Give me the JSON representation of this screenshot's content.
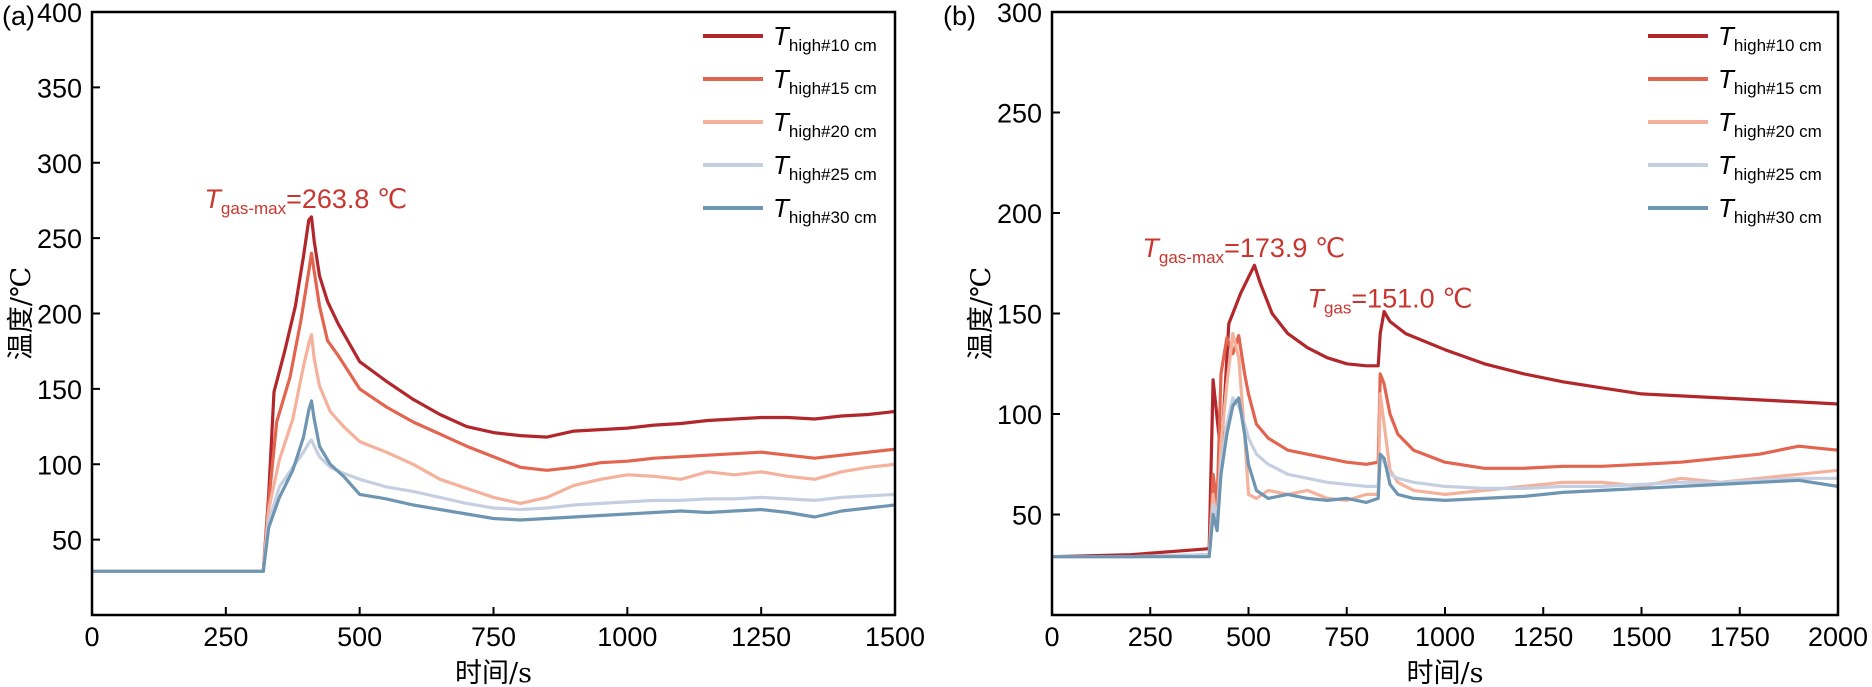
{
  "palette": [
    "#b2272b",
    "#e3644f",
    "#f4b19b",
    "#c6cfe2",
    "#6e96b2"
  ],
  "chart_data": [
    {
      "panel": "(a)",
      "type": "line",
      "xlabel": "时间/s",
      "ylabel": "温度/℃",
      "xlim": [
        0,
        1500
      ],
      "ylim": [
        0,
        400
      ],
      "xticks": [
        0,
        250,
        500,
        750,
        1000,
        1250,
        1500
      ],
      "yticks": [
        50,
        100,
        150,
        200,
        250,
        300,
        350,
        400
      ],
      "legend_position": "top-right",
      "series": [
        {
          "symbol": "T",
          "subscript": "high#10 cm",
          "color": "#b2272b",
          "x": [
            0,
            320,
            330,
            340,
            360,
            380,
            395,
            405,
            410,
            415,
            425,
            440,
            460,
            500,
            550,
            600,
            650,
            700,
            750,
            800,
            850,
            900,
            950,
            1000,
            1050,
            1100,
            1150,
            1200,
            1250,
            1300,
            1350,
            1400,
            1450,
            1500
          ],
          "y": [
            29,
            29,
            80,
            148,
            175,
            205,
            238,
            262,
            264,
            248,
            225,
            208,
            193,
            168,
            155,
            143,
            133,
            125,
            121,
            119,
            118,
            122,
            123,
            124,
            126,
            127,
            129,
            130,
            131,
            131,
            130,
            132,
            133,
            135
          ]
        },
        {
          "symbol": "T",
          "subscript": "high#15 cm",
          "color": "#e3644f",
          "x": [
            0,
            320,
            330,
            345,
            370,
            390,
            405,
            410,
            415,
            425,
            440,
            460,
            500,
            550,
            600,
            650,
            700,
            750,
            800,
            850,
            900,
            950,
            1000,
            1050,
            1100,
            1150,
            1200,
            1250,
            1300,
            1350,
            1400,
            1450,
            1500
          ],
          "y": [
            29,
            29,
            75,
            128,
            158,
            195,
            228,
            240,
            228,
            205,
            182,
            172,
            150,
            138,
            128,
            120,
            112,
            105,
            98,
            96,
            98,
            101,
            102,
            104,
            105,
            106,
            107,
            108,
            106,
            104,
            106,
            108,
            110
          ]
        },
        {
          "symbol": "T",
          "subscript": "high#20 cm",
          "color": "#f4b19b",
          "x": [
            0,
            320,
            330,
            350,
            375,
            395,
            405,
            410,
            415,
            425,
            445,
            470,
            500,
            550,
            600,
            650,
            700,
            750,
            800,
            850,
            900,
            950,
            1000,
            1050,
            1100,
            1150,
            1200,
            1250,
            1300,
            1350,
            1400,
            1450,
            1500
          ],
          "y": [
            29,
            29,
            70,
            103,
            130,
            165,
            180,
            186,
            170,
            152,
            135,
            125,
            115,
            108,
            100,
            90,
            84,
            78,
            74,
            78,
            86,
            90,
            93,
            92,
            90,
            95,
            93,
            95,
            92,
            90,
            95,
            98,
            100
          ]
        },
        {
          "symbol": "T",
          "subscript": "high#25 cm",
          "color": "#c6cfe2",
          "x": [
            0,
            320,
            330,
            350,
            375,
            395,
            405,
            410,
            415,
            425,
            445,
            470,
            500,
            550,
            600,
            650,
            700,
            750,
            800,
            850,
            900,
            950,
            1000,
            1050,
            1100,
            1150,
            1200,
            1250,
            1300,
            1350,
            1400,
            1450,
            1500
          ],
          "y": [
            29,
            29,
            62,
            85,
            98,
            108,
            114,
            116,
            112,
            105,
            98,
            94,
            90,
            85,
            82,
            78,
            74,
            71,
            70,
            71,
            73,
            74,
            75,
            76,
            76,
            77,
            77,
            78,
            77,
            76,
            78,
            79,
            80
          ]
        },
        {
          "symbol": "T",
          "subscript": "high#30 cm",
          "color": "#6e96b2",
          "x": [
            0,
            320,
            330,
            350,
            375,
            395,
            405,
            410,
            415,
            425,
            445,
            470,
            500,
            550,
            600,
            650,
            700,
            750,
            800,
            850,
            900,
            950,
            1000,
            1050,
            1100,
            1150,
            1200,
            1250,
            1300,
            1350,
            1400,
            1450,
            1500
          ],
          "y": [
            29,
            29,
            58,
            78,
            96,
            118,
            136,
            142,
            130,
            112,
            100,
            92,
            80,
            77,
            73,
            70,
            67,
            64,
            63,
            64,
            65,
            66,
            67,
            68,
            69,
            68,
            69,
            70,
            68,
            65,
            69,
            71,
            73
          ]
        }
      ],
      "annotations": [
        {
          "symbol": "T",
          "subscript": "gas-max",
          "text": "=263.8 ℃",
          "color": "#c8362f",
          "at_x": 210,
          "at_y": 270
        }
      ]
    },
    {
      "panel": "(b)",
      "type": "line",
      "xlabel": "时间/s",
      "ylabel": "温度/℃",
      "xlim": [
        0,
        2000
      ],
      "ylim": [
        0,
        300
      ],
      "xticks": [
        0,
        250,
        500,
        750,
        1000,
        1250,
        1500,
        1750,
        2000
      ],
      "yticks": [
        50,
        100,
        150,
        200,
        250,
        300
      ],
      "legend_position": "top-right",
      "series": [
        {
          "symbol": "T",
          "subscript": "high#10 cm",
          "color": "#b2272b",
          "x": [
            0,
            200,
            400,
            410,
            420,
            430,
            440,
            450,
            460,
            480,
            500,
            515,
            530,
            560,
            600,
            650,
            700,
            750,
            800,
            830,
            835,
            845,
            860,
            900,
            1000,
            1100,
            1200,
            1300,
            1400,
            1500,
            1600,
            1700,
            1800,
            1900,
            2000
          ],
          "y": [
            29,
            30,
            33,
            117,
            98,
            80,
            110,
            145,
            150,
            160,
            168,
            174,
            165,
            150,
            140,
            133,
            128,
            125,
            124,
            124,
            140,
            151,
            146,
            140,
            132,
            125,
            120,
            116,
            113,
            110,
            109,
            108,
            107,
            106,
            105
          ]
        },
        {
          "symbol": "T",
          "subscript": "high#15 cm",
          "color": "#e3644f",
          "x": [
            0,
            200,
            400,
            410,
            420,
            430,
            445,
            460,
            475,
            490,
            500,
            520,
            550,
            600,
            650,
            700,
            750,
            800,
            830,
            835,
            845,
            860,
            880,
            920,
            1000,
            1100,
            1200,
            1300,
            1400,
            1500,
            1600,
            1700,
            1800,
            1900,
            2000
          ],
          "y": [
            29,
            29,
            30,
            70,
            55,
            120,
            138,
            130,
            139,
            120,
            110,
            95,
            88,
            82,
            80,
            78,
            76,
            75,
            76,
            120,
            115,
            100,
            90,
            82,
            76,
            73,
            73,
            74,
            74,
            75,
            76,
            78,
            80,
            84,
            82
          ]
        },
        {
          "symbol": "T",
          "subscript": "high#20 cm",
          "color": "#f4b19b",
          "x": [
            0,
            200,
            400,
            410,
            420,
            430,
            445,
            460,
            475,
            490,
            500,
            520,
            550,
            600,
            650,
            700,
            750,
            800,
            830,
            835,
            845,
            860,
            880,
            920,
            1000,
            1100,
            1200,
            1300,
            1400,
            1500,
            1600,
            1700,
            1800,
            1900,
            2000
          ],
          "y": [
            29,
            29,
            30,
            60,
            45,
            85,
            115,
            140,
            128,
            90,
            60,
            58,
            62,
            60,
            62,
            58,
            57,
            60,
            60,
            110,
            95,
            72,
            66,
            62,
            60,
            62,
            64,
            66,
            66,
            64,
            68,
            66,
            68,
            70,
            72
          ]
        },
        {
          "symbol": "T",
          "subscript": "high#25 cm",
          "color": "#c6cfe2",
          "x": [
            0,
            200,
            400,
            410,
            420,
            430,
            445,
            460,
            475,
            490,
            500,
            520,
            550,
            600,
            650,
            700,
            750,
            800,
            830,
            835,
            845,
            860,
            880,
            920,
            1000,
            1100,
            1200,
            1300,
            1400,
            1500,
            1600,
            1700,
            1800,
            1900,
            2000
          ],
          "y": [
            29,
            29,
            30,
            55,
            48,
            75,
            95,
            108,
            104,
            95,
            88,
            80,
            75,
            70,
            68,
            66,
            65,
            64,
            64,
            80,
            76,
            70,
            68,
            66,
            64,
            63,
            63,
            64,
            64,
            65,
            66,
            66,
            67,
            68,
            68
          ]
        },
        {
          "symbol": "T",
          "subscript": "high#30 cm",
          "color": "#6e96b2",
          "x": [
            0,
            200,
            400,
            410,
            420,
            430,
            445,
            460,
            475,
            490,
            500,
            520,
            550,
            600,
            650,
            700,
            750,
            800,
            830,
            835,
            845,
            860,
            880,
            920,
            1000,
            1100,
            1200,
            1300,
            1400,
            1500,
            1600,
            1700,
            1800,
            1900,
            2000
          ],
          "y": [
            29,
            29,
            29,
            50,
            42,
            70,
            90,
            104,
            108,
            90,
            75,
            62,
            58,
            60,
            58,
            57,
            58,
            56,
            58,
            80,
            78,
            65,
            60,
            58,
            57,
            58,
            59,
            61,
            62,
            63,
            64,
            65,
            66,
            67,
            64
          ]
        }
      ],
      "annotations": [
        {
          "symbol": "T",
          "subscript": "gas-max",
          "text": "=173.9 ℃",
          "color": "#c8362f",
          "at_x": 230,
          "at_y": 178
        },
        {
          "symbol": "T",
          "subscript": "gas",
          "text": "=151.0 ℃",
          "color": "#c8362f",
          "at_x": 650,
          "at_y": 153
        }
      ]
    }
  ]
}
